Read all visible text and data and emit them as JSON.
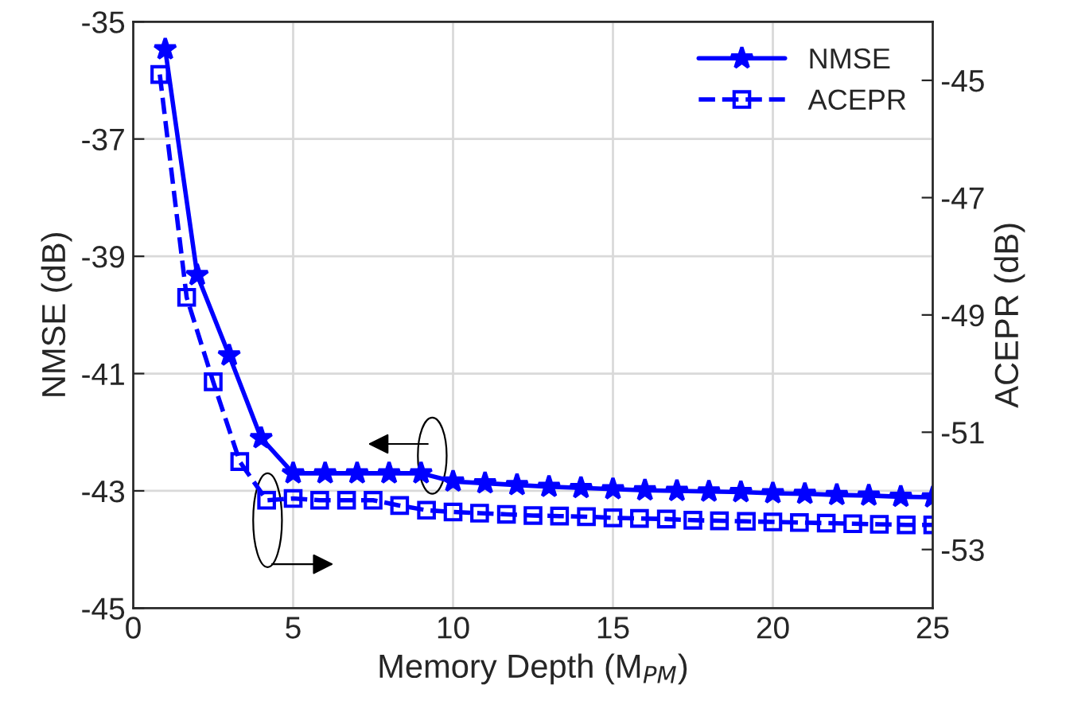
{
  "chart_data": {
    "type": "line",
    "xlabel": "Memory Depth (M$_{PM}$)",
    "ylabel": "NMSE (dB)",
    "y2label": "ACEPR (dB)",
    "xlim": [
      0,
      25
    ],
    "xticks": [
      0,
      5,
      10,
      15,
      20,
      25
    ],
    "ylim": [
      -45,
      -35
    ],
    "yticks": [
      -45,
      -43,
      -41,
      -39,
      -37,
      -35
    ],
    "y2lim": [
      -54,
      -44
    ],
    "y2ticks": [
      -53,
      -51,
      -49,
      -47,
      -45
    ],
    "grid": true,
    "legend": "top right",
    "series": [
      {
        "name": "NMSE",
        "color": "#0000ff",
        "marker": "star",
        "line_style": "solid",
        "x": [
          1,
          2,
          3,
          4,
          5,
          6,
          7,
          8,
          9,
          10,
          11,
          12,
          13,
          14,
          15,
          16,
          17,
          18,
          19,
          20,
          21,
          22,
          23,
          24,
          25
        ],
        "values": [
          -35.47,
          -39.32,
          -40.69,
          -42.1,
          -42.7,
          -42.7,
          -42.7,
          -42.7,
          -42.7,
          -42.84,
          -42.87,
          -42.9,
          -42.93,
          -42.95,
          -42.97,
          -42.99,
          -43.0,
          -43.01,
          -43.02,
          -43.04,
          -43.05,
          -43.07,
          -43.08,
          -43.1,
          -43.11
        ]
      },
      {
        "name": "ACEPR",
        "color": "#0000ff",
        "marker": "square",
        "line_style": "dashed",
        "axis": "y2",
        "x": [
          0.83,
          1.67,
          2.5,
          3.33,
          4.17,
          5.0,
          5.83,
          6.67,
          7.5,
          8.33,
          9.17,
          10.0,
          10.83,
          11.67,
          12.5,
          13.33,
          14.17,
          15.0,
          15.83,
          16.67,
          17.5,
          18.33,
          19.17,
          20.0,
          20.83,
          21.67,
          22.5,
          23.33,
          24.17,
          25.0
        ],
        "values": [
          -44.9,
          -48.7,
          -50.14,
          -51.5,
          -52.16,
          -52.13,
          -52.16,
          -52.16,
          -52.16,
          -52.25,
          -52.33,
          -52.36,
          -52.38,
          -52.4,
          -52.42,
          -52.43,
          -52.44,
          -52.46,
          -52.47,
          -52.48,
          -52.5,
          -52.51,
          -52.52,
          -52.53,
          -52.54,
          -52.55,
          -52.56,
          -52.57,
          -52.58,
          -52.58
        ]
      }
    ]
  }
}
